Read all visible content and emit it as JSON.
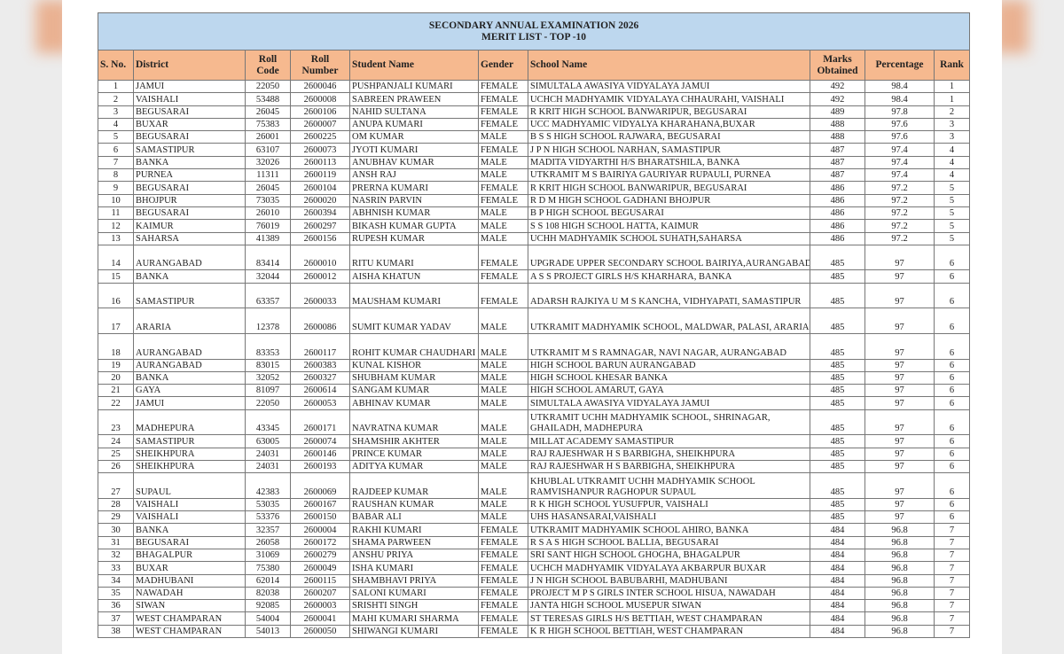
{
  "table": {
    "title": [
      "SECONDARY ANNUAL EXAMINATION 2026",
      "MERIT LIST - TOP -10"
    ],
    "headers": [
      "S. No.",
      "District",
      "Roll Code",
      "Roll Number",
      "Student Name",
      "Gender",
      "School Name",
      "Marks Obtained",
      "Percentage",
      "Rank"
    ],
    "rows": [
      [
        "1",
        "JAMUI",
        "22050",
        "2600046",
        "PUSHPANJALI KUMARI",
        "FEMALE",
        "SIMULTALA AWASIYA VIDYALAYA JAMUI",
        "492",
        "98.4",
        "1"
      ],
      [
        "2",
        "VAISHALI",
        "53488",
        "2600008",
        "SABREEN PRAWEEN",
        "FEMALE",
        "UCHCH MADHYAMIK VIDYALAYA CHHAURAHI, VAISHALI",
        "492",
        "98.4",
        "1"
      ],
      [
        "3",
        "BEGUSARAI",
        "26045",
        "2600106",
        "NAHID SULTANA",
        "FEMALE",
        "R KRIT HIGH SCHOOL BANWARIPUR, BEGUSARAI",
        "489",
        "97.8",
        "2"
      ],
      [
        "4",
        "BUXAR",
        "75383",
        "2600007",
        "ANUPA KUMARI",
        "FEMALE",
        "UCC MADHYAMIC VIDYALYA KHARAHANA,BUXAR",
        "488",
        "97.6",
        "3"
      ],
      [
        "5",
        "BEGUSARAI",
        "26001",
        "2600225",
        "OM KUMAR",
        "MALE",
        "B S S HIGH SCHOOL RAJWARA, BEGUSARAI",
        "488",
        "97.6",
        "3"
      ],
      [
        "6",
        "SAMASTIPUR",
        "63107",
        "2600073",
        "JYOTI KUMARI",
        "FEMALE",
        "J P N HIGH SCHOOL NARHAN, SAMASTIPUR",
        "487",
        "97.4",
        "4"
      ],
      [
        "7",
        "BANKA",
        "32026",
        "2600113",
        "ANUBHAV KUMAR",
        "MALE",
        "MADITA VIDYARTHI H/S BHARATSHILA, BANKA",
        "487",
        "97.4",
        "4"
      ],
      [
        "8",
        "PURNEA",
        "11311",
        "2600119",
        "ANSH RAJ",
        "MALE",
        "UTKRAMIT M S BAIRIYA GAURIYAR RUPAULI, PURNEA",
        "487",
        "97.4",
        "4"
      ],
      [
        "9",
        "BEGUSARAI",
        "26045",
        "2600104",
        "PRERNA KUMARI",
        "FEMALE",
        "R KRIT HIGH SCHOOL BANWARIPUR, BEGUSARAI",
        "486",
        "97.2",
        "5"
      ],
      [
        "10",
        "BHOJPUR",
        "73035",
        "2600020",
        "NASRIN PARVIN",
        "FEMALE",
        "R D M HIGH SCHOOL GADHANI BHOJPUR",
        "486",
        "97.2",
        "5"
      ],
      [
        "11",
        "BEGUSARAI",
        "26010",
        "2600394",
        "ABHNISH KUMAR",
        "MALE",
        "B P HIGH SCHOOL BEGUSARAI",
        "486",
        "97.2",
        "5"
      ],
      [
        "12",
        "KAIMUR",
        "76019",
        "2600297",
        "BIKASH KUMAR GUPTA",
        "MALE",
        "S S 108 HIGH SCHOOL HATTA, KAIMUR",
        "486",
        "97.2",
        "5"
      ],
      [
        "13",
        "SAHARSA",
        "41389",
        "2600156",
        "RUPESH KUMAR",
        "MALE",
        "UCHH MADHYAMIK SCHOOL SUHATH,SAHARSA",
        "486",
        "97.2",
        "5"
      ],
      [
        "14",
        "AURANGABAD",
        "83414",
        "2600010",
        "RITU KUMARI",
        "FEMALE",
        "UPGRADE UPPER SECONDARY SCHOOL BAIRIYA,AURANGABAD",
        "485",
        "97",
        "6"
      ],
      [
        "15",
        "BANKA",
        "32044",
        "2600012",
        "AISHA KHATUN",
        "FEMALE",
        "A S S PROJECT GIRLS H/S KHARHARA, BANKA",
        "485",
        "97",
        "6"
      ],
      [
        "16",
        "SAMASTIPUR",
        "63357",
        "2600033",
        "MAUSHAM KUMARI",
        "FEMALE",
        "ADARSH RAJKIYA U M S KANCHA, VIDHYAPATI, SAMASTIPUR",
        "485",
        "97",
        "6"
      ],
      [
        "17",
        "ARARIA",
        "12378",
        "2600086",
        "SUMIT KUMAR YADAV",
        "MALE",
        "UTKRAMIT MADHYAMIK SCHOOL, MALDWAR, PALASI, ARARIA",
        "485",
        "97",
        "6"
      ],
      [
        "18",
        "AURANGABAD",
        "83353",
        "2600117",
        "ROHIT KUMAR CHAUDHARI",
        "MALE",
        "UTKRAMIT M S RAMNAGAR, NAVI NAGAR, AURANGABAD",
        "485",
        "97",
        "6"
      ],
      [
        "19",
        "AURANGABAD",
        "83015",
        "2600383",
        "KUNAL KISHOR",
        "MALE",
        "HIGH SCHOOL BARUN AURANGABAD",
        "485",
        "97",
        "6"
      ],
      [
        "20",
        "BANKA",
        "32052",
        "2600327",
        "SHUBHAM KUMAR",
        "MALE",
        "HIGH SCHOOL KHESAR BANKA",
        "485",
        "97",
        "6"
      ],
      [
        "21",
        "GAYA",
        "81097",
        "2600614",
        "SANGAM KUMAR",
        "MALE",
        "HIGH SCHOOL AMARUT, GAYA",
        "485",
        "97",
        "6"
      ],
      [
        "22",
        "JAMUI",
        "22050",
        "2600053",
        "ABHINAV KUMAR",
        "MALE",
        "SIMULTALA AWASIYA VIDYALAYA JAMUI",
        "485",
        "97",
        "6"
      ],
      [
        "23",
        "MADHEPURA",
        "43345",
        "2600171",
        "NAVRATNA KUMAR",
        "MALE",
        "UTKRAMIT UCHH MADHYAMIK SCHOOL, SHRINAGAR, GHAILADH, MADHEPURA",
        "485",
        "97",
        "6"
      ],
      [
        "24",
        "SAMASTIPUR",
        "63005",
        "2600074",
        "SHAMSHIR AKHTER",
        "MALE",
        "MILLAT ACADEMY SAMASTIPUR",
        "485",
        "97",
        "6"
      ],
      [
        "25",
        "SHEIKHPURA",
        "24031",
        "2600146",
        "PRINCE KUMAR",
        "MALE",
        "RAJ RAJESHWAR H S BARBIGHA, SHEIKHPURA",
        "485",
        "97",
        "6"
      ],
      [
        "26",
        "SHEIKHPURA",
        "24031",
        "2600193",
        "ADITYA KUMAR",
        "MALE",
        "RAJ RAJESHWAR H S BARBIGHA, SHEIKHPURA",
        "485",
        "97",
        "6"
      ],
      [
        "27",
        "SUPAUL",
        "42383",
        "2600069",
        "RAJDEEP KUMAR",
        "MALE",
        "KHUBLAL UTKRAMIT UCHH MADHYAMIK SCHOOL RAMVISHANPUR RAGHOPUR SUPAUL",
        "485",
        "97",
        "6"
      ],
      [
        "28",
        "VAISHALI",
        "53035",
        "2600167",
        "RAUSHAN KUMAR",
        "MALE",
        "R K HIGH SCHOOL YUSUFPUR, VAISHALI",
        "485",
        "97",
        "6"
      ],
      [
        "29",
        "VAISHALI",
        "53376",
        "2600150",
        "BABAR ALI",
        "MALE",
        "UHS HASANSARAI,VAISHALI",
        "485",
        "97",
        "6"
      ],
      [
        "30",
        "BANKA",
        "32357",
        "2600004",
        "RAKHI KUMARI",
        "FEMALE",
        "UTKRAMIT MADHYAMIK SCHOOL AHIRO, BANKA",
        "484",
        "96.8",
        "7"
      ],
      [
        "31",
        "BEGUSARAI",
        "26058",
        "2600172",
        "SHAMA PARWEEN",
        "FEMALE",
        "R S A S HIGH SCHOOL BALLIA, BEGUSARAI",
        "484",
        "96.8",
        "7"
      ],
      [
        "32",
        "BHAGALPUR",
        "31069",
        "2600279",
        "ANSHU PRIYA",
        "FEMALE",
        "SRI SANT HIGH SCHOOL GHOGHA, BHAGALPUR",
        "484",
        "96.8",
        "7"
      ],
      [
        "33",
        "BUXAR",
        "75380",
        "2600049",
        "ISHA KUMARI",
        "FEMALE",
        "UCHCH MADHYAMIK VIDYALAYA AKBARPUR BUXAR",
        "484",
        "96.8",
        "7"
      ],
      [
        "34",
        "MADHUBANI",
        "62014",
        "2600115",
        "SHAMBHAVI PRIYA",
        "FEMALE",
        "J N HIGH SCHOOL BABUBARHI, MADHUBANI",
        "484",
        "96.8",
        "7"
      ],
      [
        "35",
        "NAWADAH",
        "82038",
        "2600207",
        "SALONI KUMARI",
        "FEMALE",
        "PROJECT M P S GIRLS INTER SCHOOL HISUA, NAWADAH",
        "484",
        "96.8",
        "7"
      ],
      [
        "36",
        "SIWAN",
        "92085",
        "2600003",
        "SRISHTI SINGH",
        "FEMALE",
        "JANTA HIGH SCHOOL MUSEPUR SIWAN",
        "484",
        "96.8",
        "7"
      ],
      [
        "37",
        "WEST CHAMPARAN",
        "54004",
        "2600041",
        "MAHI KUMARI SHARMA",
        "FEMALE",
        "ST TERESAS GIRLS H/S BETTIAH, WEST CHAMPARAN",
        "484",
        "96.8",
        "7"
      ],
      [
        "38",
        "WEST CHAMPARAN",
        "54013",
        "2600050",
        "SHIWANGI KUMARI",
        "FEMALE",
        "K R HIGH SCHOOL BETTIAH, WEST CHAMPARAN",
        "484",
        "96.8",
        "7"
      ]
    ]
  }
}
